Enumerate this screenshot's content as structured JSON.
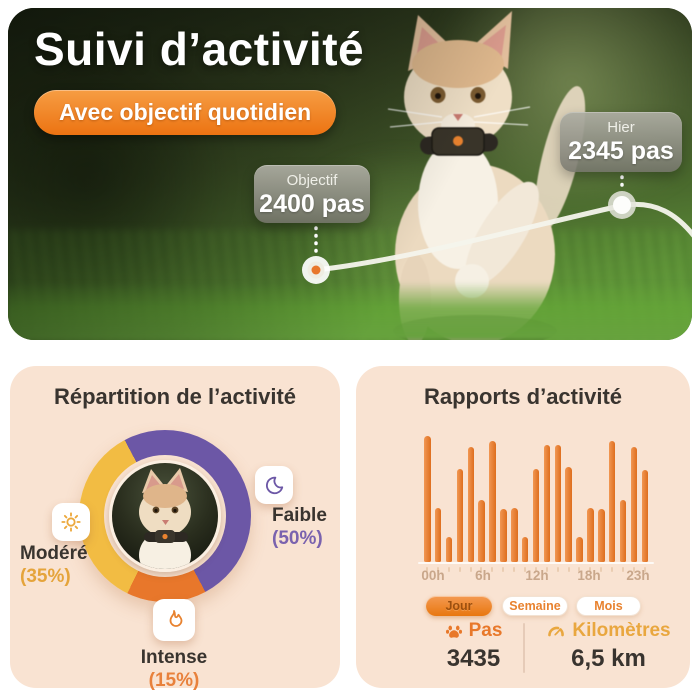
{
  "hero": {
    "title": "Suivi d’activité",
    "badge": "Avec objectif quotidien",
    "goal_callout": {
      "label": "Objectif",
      "value": "2400 pas"
    },
    "yesterday_callout": {
      "label": "Hier",
      "value": "2345 pas"
    }
  },
  "activity_split": {
    "title": "Répartition de l’activité",
    "labels": {
      "moderate": {
        "name": "Modéré",
        "pct": "(35%)"
      },
      "low": {
        "name": "Faible",
        "pct": "(50%)"
      },
      "intense": {
        "name": "Intense",
        "pct": "(15%)"
      }
    },
    "icons": {
      "moderate": "sun-icon",
      "low": "moon-icon",
      "intense": "flame-icon"
    }
  },
  "reports": {
    "title": "Rapports d’activité",
    "tabs": [
      {
        "label": "Jour",
        "active": true
      },
      {
        "label": "Semaine",
        "active": false
      },
      {
        "label": "Mois",
        "active": false
      }
    ],
    "stats": [
      {
        "icon": "paw-icon",
        "label": "Pas",
        "value": "3435"
      },
      {
        "icon": "gauge-icon",
        "label": "Kilomètres",
        "value": "6,5 km"
      }
    ]
  },
  "colors": {
    "accent_orange": "#E8782A",
    "donut_purple": "#6C57A6",
    "donut_yellow": "#F2BC43",
    "donut_orange": "#E8772B",
    "gold": "#E9A73F",
    "card_bg": "#F9E3D2"
  },
  "chart_data": [
    {
      "type": "pie",
      "donut": true,
      "title": "Répartition de l’activité",
      "labels": [
        "Faible",
        "Intense",
        "Modéré"
      ],
      "values": [
        50,
        15,
        35
      ],
      "colors": [
        "#6C57A6",
        "#E8772B",
        "#F2BC43"
      ],
      "start_angle_deg": -28,
      "center_image": "cat-photo"
    },
    {
      "type": "bar",
      "title": "Rapports d’activité",
      "x_tick_labels": [
        "00h",
        "6h",
        "12h",
        "18h",
        "23h"
      ],
      "x_range": "hours 00h to 23h",
      "values": [
        100,
        43,
        20,
        74,
        91,
        49,
        96,
        42,
        43,
        20,
        74,
        93,
        93,
        75,
        20,
        43,
        42,
        96,
        49,
        91,
        73
      ],
      "unit": "relative activity (% of max)",
      "ylim": [
        0,
        100
      ],
      "bar_color": "#E2762A",
      "grid": false,
      "legend": null
    }
  ]
}
